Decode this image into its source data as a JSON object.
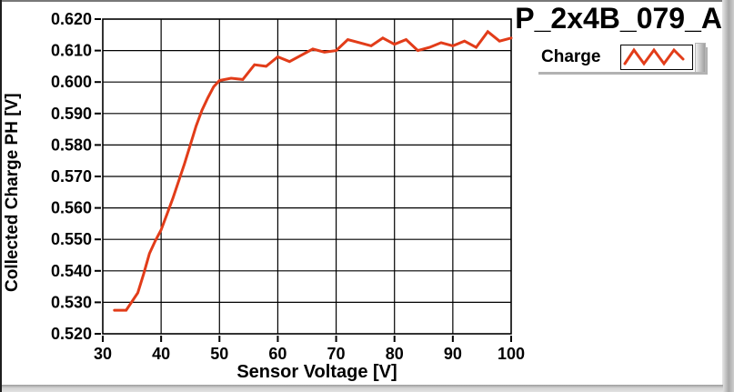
{
  "title": "P_2x4B_079_A",
  "legend": {
    "label": "Charge"
  },
  "colors": {
    "series": "#e23c19",
    "axis": "#000000",
    "grid": "#000000",
    "background": "#ffffff"
  },
  "chart_data": {
    "type": "line",
    "title": "P_2x4B_079_A",
    "xlabel": "Sensor Voltage [V]",
    "ylabel": "Collected Charge PH [V]",
    "xlim": [
      30,
      100
    ],
    "ylim": [
      0.52,
      0.62
    ],
    "x_ticks": [
      30,
      40,
      50,
      60,
      70,
      80,
      90,
      100
    ],
    "y_ticks": [
      0.52,
      0.53,
      0.54,
      0.55,
      0.56,
      0.57,
      0.58,
      0.59,
      0.6,
      0.61,
      0.62
    ],
    "grid": true,
    "legend_position": "top-right",
    "series": [
      {
        "name": "Charge",
        "x": [
          32,
          34,
          36,
          37,
          38,
          39,
          40,
          41,
          42,
          43,
          44,
          45,
          46,
          47,
          48,
          49,
          50,
          52,
          54,
          56,
          58,
          60,
          62,
          64,
          66,
          68,
          70,
          72,
          74,
          76,
          78,
          80,
          82,
          84,
          86,
          88,
          90,
          92,
          94,
          96,
          98,
          100
        ],
        "y": [
          0.5275,
          0.5275,
          0.533,
          0.539,
          0.5455,
          0.5495,
          0.553,
          0.558,
          0.563,
          0.5685,
          0.574,
          0.58,
          0.586,
          0.591,
          0.595,
          0.5985,
          0.6005,
          0.6012,
          0.6008,
          0.6055,
          0.605,
          0.608,
          0.6065,
          0.6085,
          0.6105,
          0.6095,
          0.61,
          0.6135,
          0.6125,
          0.6115,
          0.614,
          0.612,
          0.6135,
          0.61,
          0.611,
          0.6125,
          0.6115,
          0.613,
          0.611,
          0.616,
          0.613,
          0.614
        ]
      }
    ]
  }
}
